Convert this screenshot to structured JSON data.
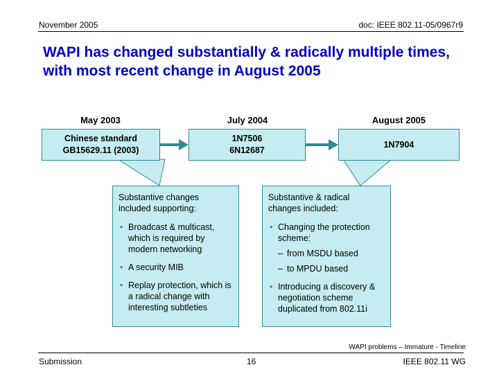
{
  "header": {
    "left": "November 2005",
    "right": "doc: IEEE 802.11-05/0967r9"
  },
  "title": "WAPI has changed substantially & radically multiple times, with most recent change in August 2005",
  "timeline": [
    {
      "date": "May 2003",
      "lines": [
        "Chinese standard",
        "GB15629.11 (2003)"
      ]
    },
    {
      "date": "July 2004",
      "lines": [
        "1N7506",
        "6N12687"
      ]
    },
    {
      "date": "August 2005",
      "lines": [
        "1N7904"
      ]
    }
  ],
  "callouts": [
    {
      "intro": "Substantive changes included supporting:",
      "items": [
        {
          "text": "Broadcast & multicast, which is required by modern networking",
          "sub": false
        },
        {
          "text": "A security MIB",
          "sub": false
        },
        {
          "text": "Replay protection, which is a radical change with interesting subtleties",
          "sub": false
        }
      ]
    },
    {
      "intro": "Substantive & radical changes included:",
      "items": [
        {
          "text": "Changing the protection scheme:",
          "sub": false
        },
        {
          "text": "from MSDU based",
          "sub": true
        },
        {
          "text": "to MPDU based",
          "sub": true
        },
        {
          "text": "Introducing a discovery & negotiation scheme duplicated from 802.11i",
          "sub": false
        }
      ]
    }
  ],
  "caption": "WAPI problems – Immature - Timeline",
  "footer": {
    "left": "Submission",
    "page": "16",
    "right": "IEEE 802.11 WG"
  },
  "colors": {
    "title": "#0000cc",
    "box_fill": "#c5ecf0",
    "box_border": "#2e8b94",
    "arrow": "#2e8b94",
    "bullet": "#00a0b4"
  }
}
